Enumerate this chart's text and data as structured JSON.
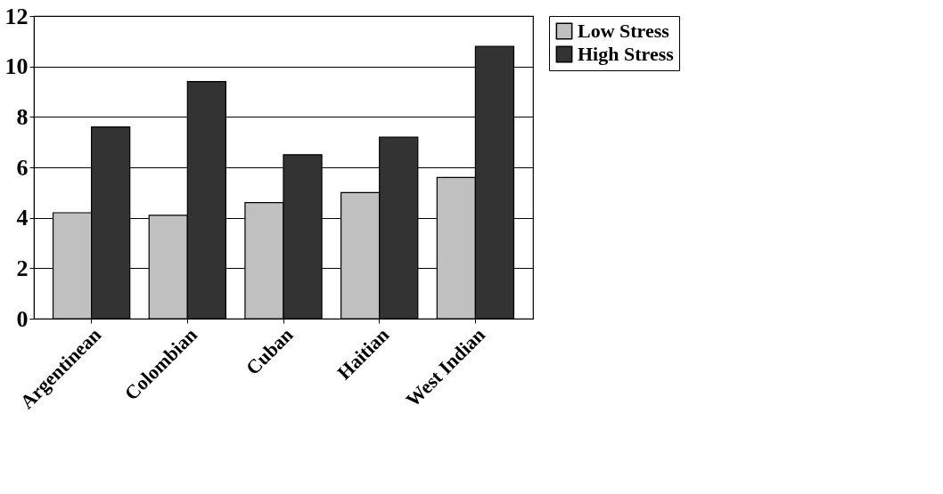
{
  "chart_data": {
    "type": "bar",
    "categories": [
      "Argentinean",
      "Colombian",
      "Cuban",
      "Haitian",
      "West Indian"
    ],
    "series": [
      {
        "name": "Low Stress",
        "color": "#c0c0c0",
        "values": [
          4.2,
          4.1,
          4.6,
          5.0,
          5.6
        ]
      },
      {
        "name": "High Stress",
        "color": "#333333",
        "values": [
          7.6,
          9.4,
          6.5,
          7.2,
          10.8
        ]
      }
    ],
    "ylim": [
      0,
      12
    ],
    "yticks": [
      0,
      2,
      4,
      6,
      8,
      10,
      12
    ],
    "grid": "y",
    "legend": "right"
  }
}
